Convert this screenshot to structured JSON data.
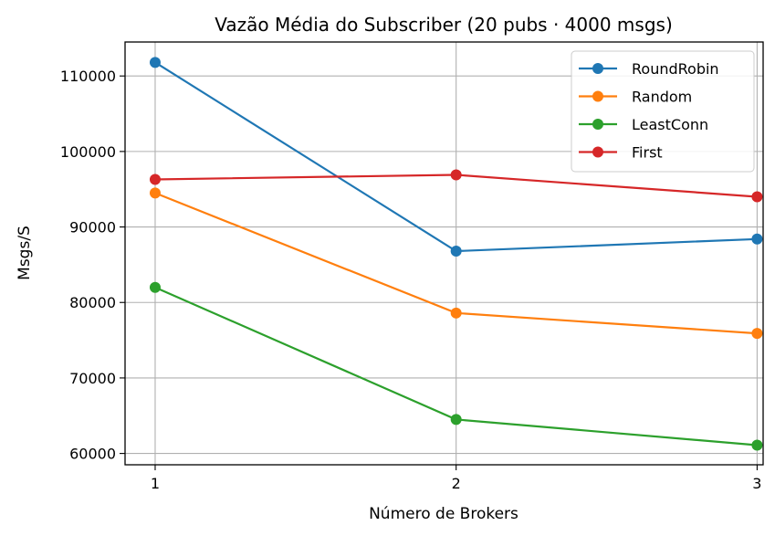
{
  "chart_data": {
    "type": "line",
    "title": "Vazão Média do Subscriber (20 pubs · 4000 msgs)",
    "xlabel": "Número de Brokers",
    "ylabel": "Msgs/S",
    "x": [
      1,
      2,
      3
    ],
    "xticks": [
      "1",
      "2",
      "3"
    ],
    "yticks": [
      60000,
      70000,
      80000,
      90000,
      100000,
      110000
    ],
    "xlim": [
      0.9,
      3.02
    ],
    "ylim": [
      58500,
      114500
    ],
    "grid": true,
    "legend_position": "top-right",
    "series": [
      {
        "name": "RoundRobin",
        "color": "#1f77b4",
        "values": [
          111800,
          86800,
          88400
        ]
      },
      {
        "name": "Random",
        "color": "#ff7f0e",
        "values": [
          94500,
          78600,
          75900
        ]
      },
      {
        "name": "LeastConn",
        "color": "#2ca02c",
        "values": [
          82000,
          64500,
          61100
        ]
      },
      {
        "name": "First",
        "color": "#d62728",
        "values": [
          96300,
          96900,
          94000
        ]
      }
    ]
  }
}
